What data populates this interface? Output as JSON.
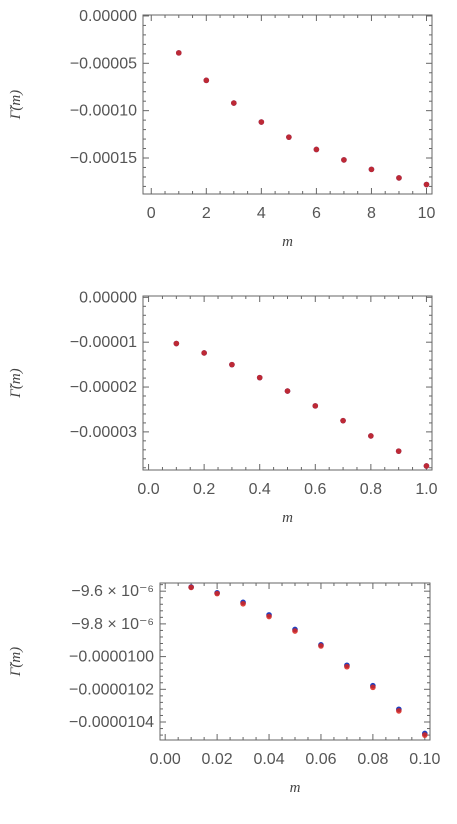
{
  "chart_data": [
    {
      "type": "scatter",
      "xlabel": "m",
      "ylabel": "Γ̃(m)",
      "xlim": [
        -0.3,
        10.2
      ],
      "ylim": [
        -0.000188,
        1e-06
      ],
      "xticks": [
        0,
        2,
        4,
        6,
        8,
        10
      ],
      "xtick_labels": [
        "0",
        "2",
        "4",
        "6",
        "8",
        "10"
      ],
      "yticks": [
        0,
        -5e-05,
        -0.0001,
        -0.00015
      ],
      "ytick_labels": [
        "0.00000",
        "−0.00005",
        "−0.00010",
        "−0.00015"
      ],
      "x": [
        1,
        2,
        3,
        4,
        5,
        6,
        7,
        8,
        9,
        10
      ],
      "series": [
        {
          "color": "#1f3fbf",
          "values": [
            -3.9e-05,
            -6.8e-05,
            -9.2e-05,
            -0.000112,
            -0.000128,
            -0.000141,
            -0.000152,
            -0.000162,
            -0.000171,
            -0.000178
          ]
        },
        {
          "color": "#d9261c",
          "values": [
            -3.9e-05,
            -6.8e-05,
            -9.2e-05,
            -0.000112,
            -0.000128,
            -0.000141,
            -0.000152,
            -0.000162,
            -0.000171,
            -0.000178
          ]
        }
      ],
      "grid": false
    },
    {
      "type": "scatter",
      "xlabel": "m",
      "ylabel": "Γ̃(m)",
      "xlim": [
        -0.02,
        1.02
      ],
      "ylim": [
        -3.85e-05,
        3e-07
      ],
      "xticks": [
        0,
        0.2,
        0.4,
        0.6,
        0.8,
        1.0
      ],
      "xtick_labels": [
        "0.0",
        "0.2",
        "0.4",
        "0.6",
        "0.8",
        "1.0"
      ],
      "yticks": [
        0,
        -1e-05,
        -2e-05,
        -3e-05
      ],
      "ytick_labels": [
        "0.00000",
        "−0.00001",
        "−0.00002",
        "−0.00003"
      ],
      "x": [
        0.1,
        0.2,
        0.3,
        0.4,
        0.5,
        0.6,
        0.7,
        0.8,
        0.9,
        1.0
      ],
      "series": [
        {
          "color": "#1f3fbf",
          "values": [
            -1.03e-05,
            -1.24e-05,
            -1.5e-05,
            -1.79e-05,
            -2.09e-05,
            -2.42e-05,
            -2.75e-05,
            -3.09e-05,
            -3.43e-05,
            -3.76e-05
          ]
        },
        {
          "color": "#d9261c",
          "values": [
            -1.03e-05,
            -1.24e-05,
            -1.5e-05,
            -1.79e-05,
            -2.09e-05,
            -2.42e-05,
            -2.75e-05,
            -3.09e-05,
            -3.43e-05,
            -3.76e-05
          ]
        }
      ],
      "grid": false
    },
    {
      "type": "scatter",
      "xlabel": "m",
      "ylabel": "Γ̃(m)",
      "xlim": [
        -0.002,
        0.102
      ],
      "ylim": [
        -1.051e-05,
        -9.55e-06
      ],
      "xticks": [
        0,
        0.02,
        0.04,
        0.06,
        0.08,
        0.1
      ],
      "xtick_labels": [
        "0.00",
        "0.02",
        "0.04",
        "0.06",
        "0.08",
        "0.10"
      ],
      "yticks": [
        -9.6e-06,
        -9.8e-06,
        -1e-05,
        -1.02e-05,
        -1.04e-05
      ],
      "ytick_labels": [
        "−9.6 × 10⁻⁶",
        "−9.8 × 10⁻⁶",
        "−0.0000100",
        "−0.0000102",
        "−0.0000104"
      ],
      "x": [
        0.01,
        0.02,
        0.03,
        0.04,
        0.05,
        0.06,
        0.07,
        0.08,
        0.09,
        0.1
      ],
      "series": [
        {
          "color": "#1f3fbf",
          "values": [
            -9.575e-06,
            -9.61e-06,
            -9.668e-06,
            -9.745e-06,
            -9.834e-06,
            -9.928e-06,
            -1.0053e-05,
            -1.0178e-05,
            -1.0322e-05,
            -1.047e-05
          ]
        },
        {
          "color": "#d9261c",
          "values": [
            -9.577e-06,
            -9.615e-06,
            -9.677e-06,
            -9.755e-06,
            -9.844e-06,
            -9.935e-06,
            -1.0062e-05,
            -1.0188e-05,
            -1.0332e-05,
            -1.048e-05
          ]
        }
      ],
      "grid": false
    }
  ]
}
